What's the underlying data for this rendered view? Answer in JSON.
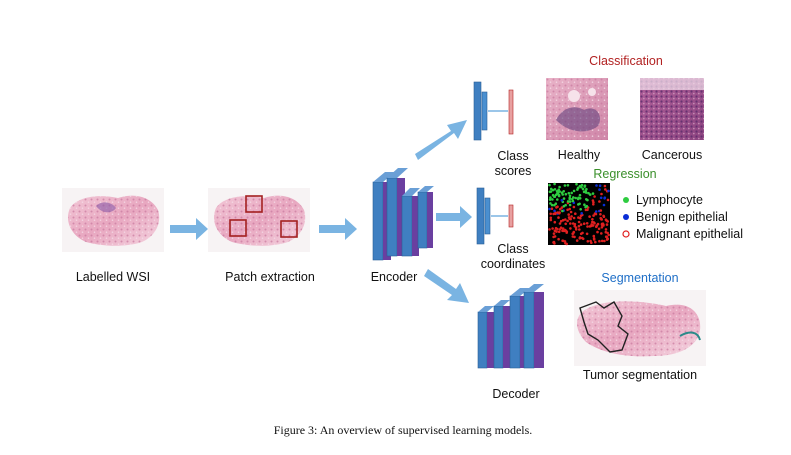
{
  "pipeline": {
    "wsi_label": "Labelled WSI",
    "patch_label": "Patch extraction",
    "encoder_label": "Encoder",
    "decoder_label": "Decoder"
  },
  "classification": {
    "title": "Classification",
    "head_label_line1": "Class",
    "head_label_line2": "scores",
    "healthy_label": "Healthy",
    "cancerous_label": "Cancerous"
  },
  "regression": {
    "title": "Regression",
    "head_label_line1": "Class",
    "head_label_line2": "coordinates",
    "legend": [
      "Lymphocyte",
      "Benign epithelial",
      "Malignant epithelial"
    ]
  },
  "segmentation": {
    "title": "Segmentation",
    "result_label": "Tumor segmentation"
  },
  "caption": "Figure 3: An overview of supervised learning models.",
  "colors": {
    "arrow": "#7ab4e2",
    "block_front": "#3f7fc1",
    "block_purple": "#6a3fa0",
    "classification_title": "#b22222",
    "regression_title": "#3a8f2a",
    "segmentation_title": "#1f6fc7",
    "lymphocyte": "#2ecc40",
    "benign": "#0a2dd6",
    "malignant": "#e02020",
    "patch_box": "#a32020"
  }
}
